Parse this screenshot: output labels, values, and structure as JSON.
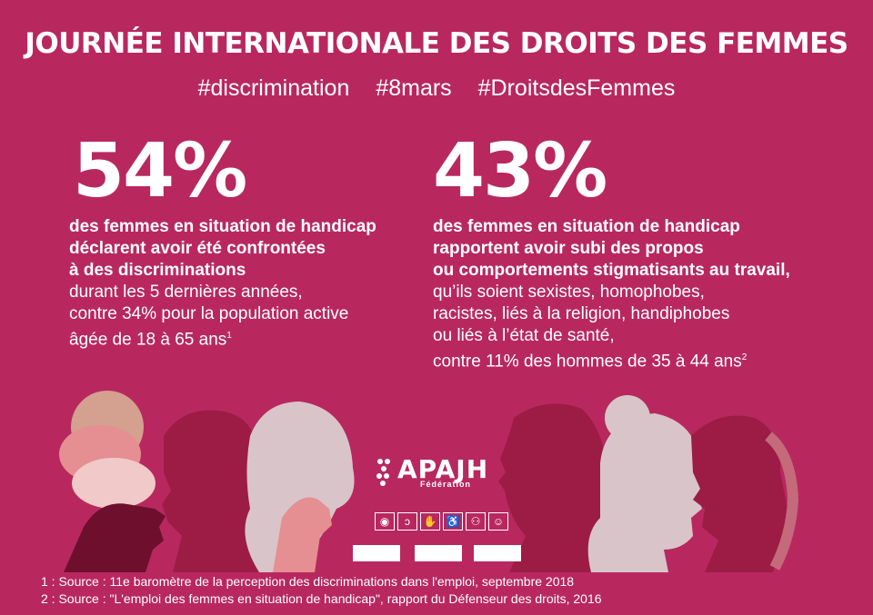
{
  "header": {
    "title": "JOURNÉE INTERNATIONALE DES DROITS DES FEMMES",
    "hashtags": [
      "#discrimination",
      "#8mars",
      "#DroitsdesFemmes"
    ]
  },
  "stat1": {
    "value": "54%",
    "bold_lines": [
      "des femmes en situation de handicap",
      "déclarent avoir été confrontées",
      "à des discriminations"
    ],
    "regular_lines": [
      "durant les 5 dernières années,",
      "contre 34% pour la population active",
      "âgée de 18 à 65 ans"
    ],
    "footnote": "1"
  },
  "stat2": {
    "value": "43%",
    "bold_lines": [
      "des femmes en situation de handicap",
      "rapportent avoir subi des propos",
      "ou comportements stigmatisants au travail,"
    ],
    "regular_lines": [
      "qu’ils soient sexistes, homophobes,",
      "racistes, liés à la religion, handiphobes",
      "ou liés à l’état de santé,",
      "contre 11% des hommes de 35 à 44 ans"
    ],
    "footnote": "2"
  },
  "logo": {
    "name": "APAJH",
    "subtitle": "Fédération",
    "pictograms": [
      "eye-icon",
      "ear-icon",
      "sign-language-icon",
      "wheelchair-icon",
      "group-icon",
      "head-icon"
    ]
  },
  "sources": [
    "1 : Source : 11e baromètre de la perception des discriminations dans l'emploi, septembre 2018",
    "2 : Source : \"L'emploi des femmes en situation de handicap\", rapport du Défenseur des droits, 2016"
  ],
  "colors": {
    "background": "#b8285f",
    "silhouette_dark": "#6e0f2e",
    "silhouette_mid": "#9c1c45",
    "silhouette_light": "#e8a0ab",
    "silhouette_pale": "#d9c5c9"
  }
}
